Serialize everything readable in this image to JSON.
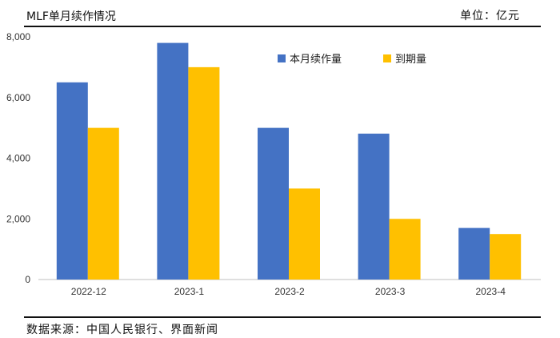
{
  "header": {
    "title": "MLF单月续作情况",
    "unit": "单位：亿元"
  },
  "footer": {
    "source": "数据来源：中国人民银行、界面新闻"
  },
  "colors": {
    "series1": "#4472C4",
    "series2": "#FFC000"
  },
  "chart_data": {
    "type": "bar",
    "title": "MLF单月续作情况",
    "xlabel": "",
    "ylabel": "",
    "categories": [
      "2022-12",
      "2023-1",
      "2023-2",
      "2023-3",
      "2023-4"
    ],
    "series": [
      {
        "name": "本月续作量",
        "values": [
          6500,
          7800,
          5000,
          4810,
          1700
        ]
      },
      {
        "name": "到期量",
        "values": [
          5000,
          7000,
          3000,
          2000,
          1500
        ]
      }
    ],
    "ylim": [
      0,
      8000
    ],
    "yticks": [
      "0",
      "2,000",
      "4,000",
      "6,000",
      "8,000"
    ],
    "ytick_values": [
      0,
      2000,
      4000,
      6000,
      8000
    ],
    "grid": false,
    "legend": "top-right"
  }
}
